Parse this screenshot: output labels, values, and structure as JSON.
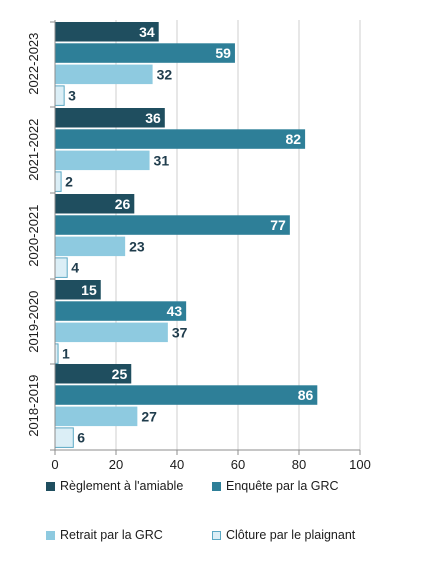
{
  "chart_data": {
    "type": "bar",
    "orientation": "horizontal",
    "categories": [
      "2022-2023",
      "2021-2022",
      "2020-2021",
      "2019-2020",
      "2018-2019"
    ],
    "series": [
      {
        "name": "Règlement à l'amiable",
        "color": "#1f4e5f",
        "values": [
          34,
          36,
          26,
          15,
          25
        ]
      },
      {
        "name": "Enquête par la GRC",
        "color": "#2e7f98",
        "values": [
          59,
          82,
          77,
          43,
          86
        ]
      },
      {
        "name": "Retrait par la GRC",
        "color": "#8ecae0",
        "values": [
          32,
          31,
          23,
          37,
          27
        ]
      },
      {
        "name": "Clôture par le plaignant",
        "color": "#dbeef6",
        "values": [
          3,
          2,
          4,
          1,
          6
        ]
      }
    ],
    "xlim": [
      0,
      100
    ],
    "xticks": [
      "0",
      "20",
      "40",
      "60",
      "80",
      "100"
    ],
    "grid": true,
    "legend_position": "bottom",
    "data_labels": true,
    "label_color": "#1f3c4c"
  }
}
